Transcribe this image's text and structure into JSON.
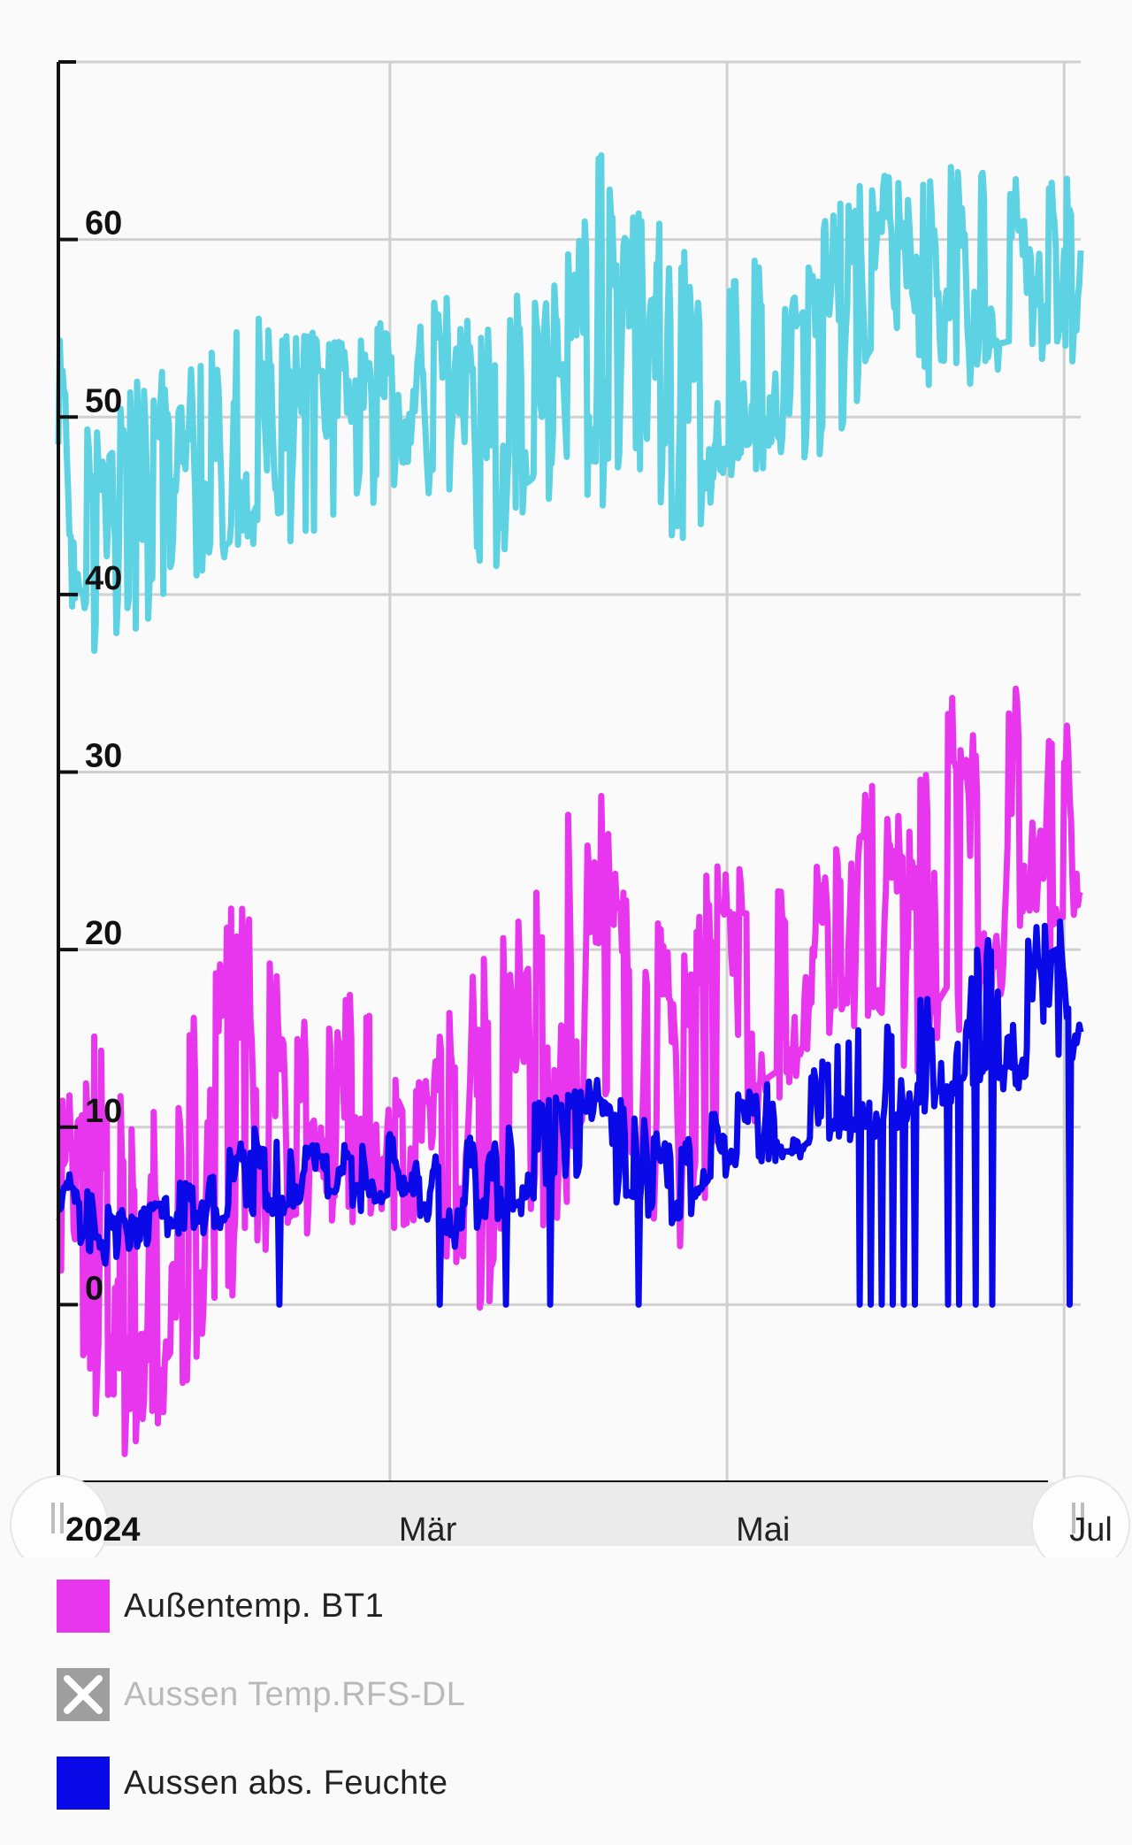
{
  "chart_data": {
    "type": "line",
    "ylim": [
      -10,
      70
    ],
    "yticks": [
      0,
      10,
      20,
      30,
      40,
      50,
      60
    ],
    "xticks": [
      {
        "label": "2024",
        "value": "2024-01-01"
      },
      {
        "label": "Mär",
        "value": "2024-03-01"
      },
      {
        "label": "Mai",
        "value": "2024-05-01"
      },
      {
        "label": "Jul",
        "value": "2024-07-01"
      }
    ],
    "xlim": [
      "2024-01-01",
      "2024-07-04"
    ],
    "grid": true,
    "legend_position": "bottom",
    "series": [
      {
        "name": "Außentemp. BT1",
        "color": "#e836ef",
        "enabled": true,
        "envelope": {
          "x": [
            "2024-01-01",
            "2024-01-08",
            "2024-01-15",
            "2024-01-22",
            "2024-01-29",
            "2024-02-05",
            "2024-02-12",
            "2024-02-19",
            "2024-02-26",
            "2024-03-04",
            "2024-03-11",
            "2024-03-18",
            "2024-03-25",
            "2024-04-01",
            "2024-04-08",
            "2024-04-15",
            "2024-04-22",
            "2024-04-29",
            "2024-05-06",
            "2024-05-13",
            "2024-05-20",
            "2024-05-27",
            "2024-06-03",
            "2024-06-10",
            "2024-06-17",
            "2024-06-24",
            "2024-07-01",
            "2024-07-04"
          ],
          "low": [
            -1,
            -8,
            -9,
            -5,
            -3,
            3,
            3,
            4,
            5,
            4,
            2,
            -2,
            3,
            4,
            10,
            6,
            3,
            7,
            10,
            12,
            15,
            15,
            12,
            15,
            16,
            20,
            20,
            21
          ],
          "high": [
            11,
            17,
            10,
            13,
            20,
            25,
            16,
            17,
            18,
            12,
            18,
            20,
            22,
            28,
            29,
            23,
            20,
            26,
            25,
            24,
            27,
            30,
            28,
            35,
            31,
            36,
            32,
            36
          ]
        }
      },
      {
        "name": "Aussen Temp.RFS-DL",
        "color": "#9e9e9e",
        "enabled": false
      },
      {
        "name": "Aussen abs. Feuchte",
        "color": "#0a0ae8",
        "enabled": true,
        "envelope": {
          "x": [
            "2024-01-01",
            "2024-01-08",
            "2024-01-15",
            "2024-01-22",
            "2024-01-29",
            "2024-02-05",
            "2024-02-12",
            "2024-02-19",
            "2024-02-26",
            "2024-03-04",
            "2024-03-11",
            "2024-03-18",
            "2024-03-25",
            "2024-04-01",
            "2024-04-08",
            "2024-04-15",
            "2024-04-22",
            "2024-04-29",
            "2024-05-06",
            "2024-05-13",
            "2024-05-20",
            "2024-05-27",
            "2024-06-03",
            "2024-06-10",
            "2024-06-17",
            "2024-06-24",
            "2024-07-01",
            "2024-07-04"
          ],
          "low": [
            5,
            2,
            3,
            4,
            4,
            5,
            5,
            6,
            5,
            6,
            3,
            4,
            5,
            7,
            6,
            5,
            4,
            7,
            8,
            8,
            9,
            9,
            10,
            11,
            12,
            12,
            13,
            14
          ],
          "high": [
            8,
            6,
            5,
            7,
            8,
            10,
            9,
            9,
            9,
            11,
            9,
            10,
            11,
            12,
            13,
            11,
            9,
            11,
            13,
            12,
            15,
            16,
            17,
            20,
            21,
            21,
            22,
            23
          ],
          "drops_to_zero": [
            "2024-02-10",
            "2024-03-10",
            "2024-03-22",
            "2024-03-30",
            "2024-04-15",
            "2024-05-25",
            "2024-05-27",
            "2024-05-29",
            "2024-05-31",
            "2024-06-02",
            "2024-06-04",
            "2024-06-10",
            "2024-06-12",
            "2024-06-15",
            "2024-06-18",
            "2024-07-02"
          ]
        }
      },
      {
        "name": "",
        "color": "#5cd2e3",
        "enabled": true,
        "legend": false,
        "envelope": {
          "x": [
            "2024-01-01",
            "2024-01-08",
            "2024-01-15",
            "2024-01-22",
            "2024-01-29",
            "2024-02-05",
            "2024-02-12",
            "2024-02-19",
            "2024-02-26",
            "2024-03-04",
            "2024-03-11",
            "2024-03-18",
            "2024-03-25",
            "2024-04-01",
            "2024-04-08",
            "2024-04-15",
            "2024-04-22",
            "2024-04-29",
            "2024-05-06",
            "2024-05-13",
            "2024-05-20",
            "2024-05-27",
            "2024-06-03",
            "2024-06-10",
            "2024-06-17",
            "2024-06-24",
            "2024-07-01",
            "2024-07-04"
          ],
          "low": [
            41,
            36,
            38,
            40,
            40,
            42,
            43,
            43,
            45,
            46,
            45,
            40,
            44,
            46,
            44,
            46,
            41,
            45,
            47,
            46,
            48,
            52,
            52,
            51,
            52,
            53,
            53,
            53
          ],
          "high": [
            55,
            50,
            52,
            53,
            54,
            56,
            55,
            55,
            55,
            56,
            57,
            55,
            58,
            58,
            67,
            62,
            60,
            57,
            59,
            57,
            62,
            64,
            63,
            65,
            65,
            63,
            64,
            66
          ]
        }
      }
    ]
  },
  "legend": {
    "items": [
      {
        "label": "Außentemp. BT1",
        "color": "#e836ef"
      },
      {
        "label": "Aussen Temp.RFS-DL",
        "color": "#9e9e9e"
      },
      {
        "label": "Aussen abs. Feuchte",
        "color": "#0a0ae8"
      }
    ]
  }
}
